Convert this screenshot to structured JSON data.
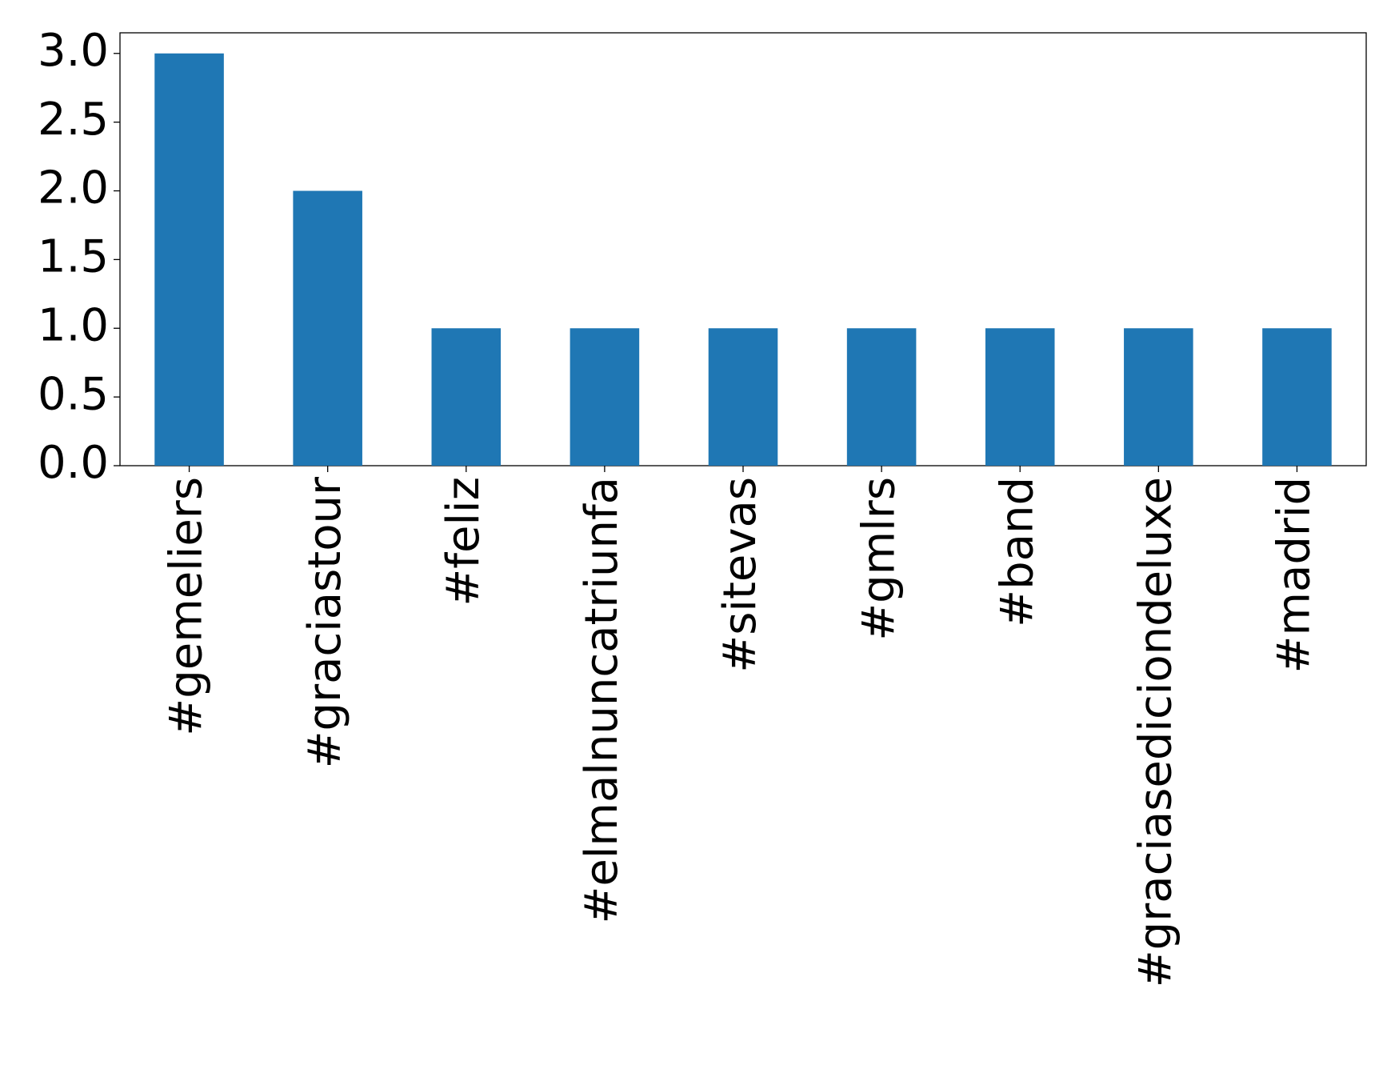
{
  "chart_data": {
    "type": "bar",
    "categories": [
      "#gemeliers",
      "#graciastour",
      "#feliz",
      "#elmalnuncatriunfa",
      "#sitevas",
      "#gmlrs",
      "#band",
      "#graciasediciondeluxe",
      "#madrid"
    ],
    "values": [
      3,
      2,
      1,
      1,
      1,
      1,
      1,
      1,
      1
    ],
    "color": "#1f77b4",
    "ylim": [
      0,
      3.15
    ],
    "yticks": [
      {
        "value": 0,
        "label": "0.0"
      },
      0.5,
      {
        "value": 1,
        "label": "1.0"
      },
      1.5,
      {
        "value": 2,
        "label": "2.0"
      },
      2.5,
      {
        "value": 3,
        "label": "3.0"
      }
    ],
    "grid": false
  }
}
